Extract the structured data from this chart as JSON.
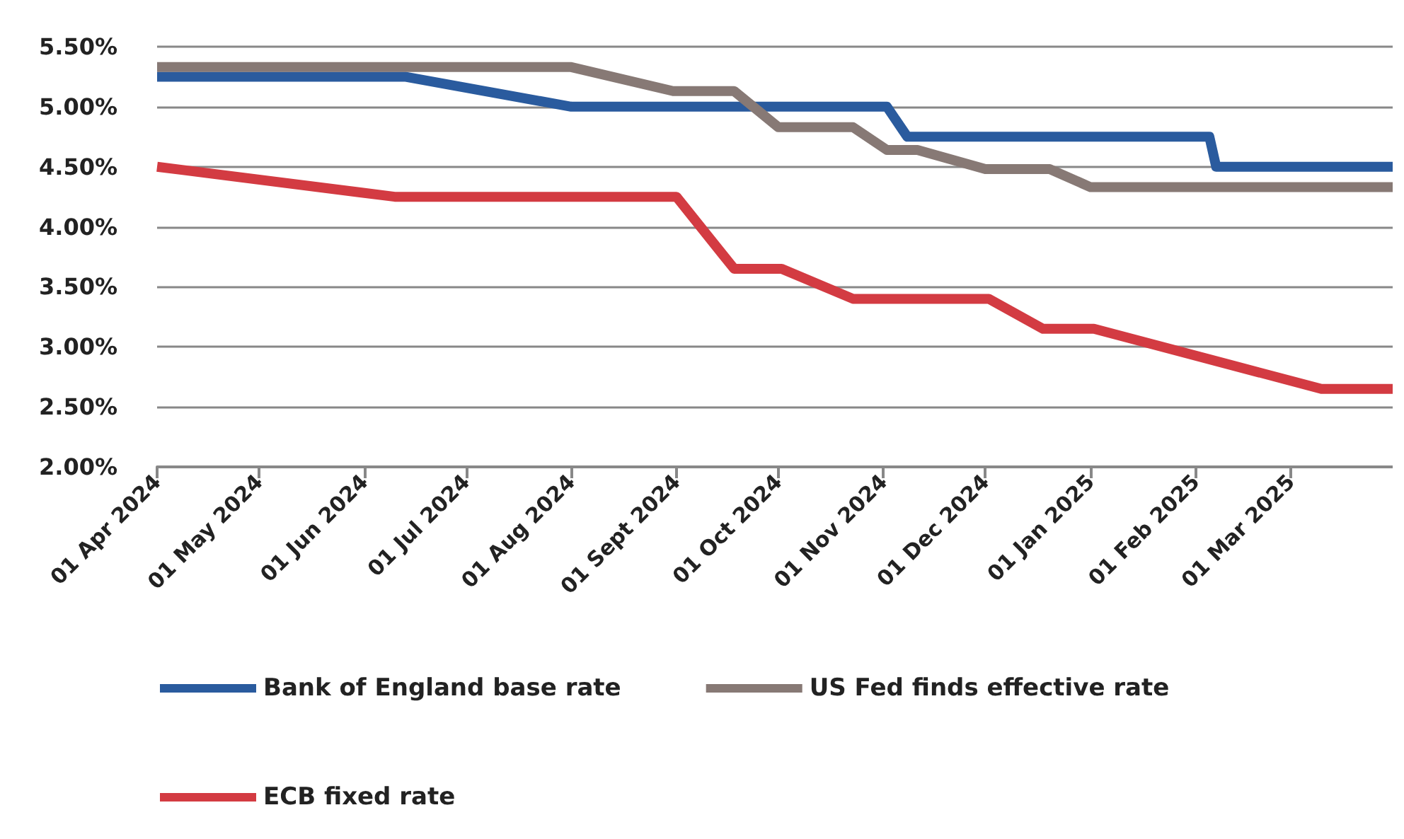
{
  "chart_data": {
    "type": "line",
    "xlim": [
      "2024-04-01",
      "2025-03-31"
    ],
    "xticks": [
      {
        "value": "2024-04-01",
        "label": "01 Apr 2024"
      },
      {
        "value": "2024-05-01",
        "label": "01 May 2024"
      },
      {
        "value": "2024-06-01",
        "label": "01 Jun 2024"
      },
      {
        "value": "2024-07-01",
        "label": "01 Jul 2024"
      },
      {
        "value": "2024-08-01",
        "label": "01 Aug 2024"
      },
      {
        "value": "2024-09-01",
        "label": "01 Sept 2024"
      },
      {
        "value": "2024-10-01",
        "label": "01 Oct 2024"
      },
      {
        "value": "2024-11-01",
        "label": "01 Nov 2024"
      },
      {
        "value": "2024-12-01",
        "label": "01 Dec 2024"
      },
      {
        "value": "2025-01-01",
        "label": "01 Jan 2025"
      },
      {
        "value": "2025-02-01",
        "label": "01 Feb 2025"
      },
      {
        "value": "2025-03-01",
        "label": "01 Mar 2025"
      }
    ],
    "ylim": [
      2,
      5.5
    ],
    "yticks": [
      {
        "value": 2,
        "label": "2.00%"
      },
      {
        "value": 2.5,
        "label": "2.50%"
      },
      {
        "value": 3,
        "label": "3.00%"
      },
      {
        "value": 3.5,
        "label": "3.50%"
      },
      {
        "value": 4,
        "label": "4.00%"
      },
      {
        "value": 4.5,
        "label": "4.50%"
      },
      {
        "value": 5,
        "label": "5.00%"
      },
      {
        "value": 5.5,
        "label": "5.50%"
      }
    ],
    "grid": "y",
    "legend": "bottom",
    "marker": "none",
    "line_style": "solid",
    "series": [
      {
        "name": "Bank of England base rate",
        "color": "#2a5b9e",
        "x": [
          "2024-04-01",
          "2024-06-13",
          "2024-08-01",
          "2024-11-02",
          "2024-11-08",
          "2025-02-05",
          "2025-02-07",
          "2025-03-31"
        ],
        "values": [
          5.25,
          5.25,
          5.0,
          5.0,
          4.75,
          4.75,
          4.5,
          4.5
        ]
      },
      {
        "name": "US Fed finds effective rate",
        "color": "#877975",
        "x": [
          "2024-04-01",
          "2024-08-01",
          "2024-08-31",
          "2024-09-18",
          "2024-10-01",
          "2024-10-23",
          "2024-11-02",
          "2024-11-11",
          "2024-12-01",
          "2024-12-20",
          "2025-01-01",
          "2025-03-31"
        ],
        "values": [
          5.33,
          5.33,
          5.13,
          5.13,
          4.83,
          4.83,
          4.64,
          4.64,
          4.48,
          4.48,
          4.33,
          4.33
        ]
      },
      {
        "name": "ECB fixed rate",
        "color": "#d33b42",
        "x": [
          "2024-04-01",
          "2024-06-10",
          "2024-09-01",
          "2024-09-18",
          "2024-10-02",
          "2024-10-23",
          "2024-12-02",
          "2024-12-18",
          "2025-01-02",
          "2025-03-10",
          "2025-03-31"
        ],
        "values": [
          4.5,
          4.25,
          4.25,
          3.65,
          3.65,
          3.4,
          3.4,
          3.15,
          3.15,
          2.65,
          2.65
        ]
      }
    ]
  }
}
